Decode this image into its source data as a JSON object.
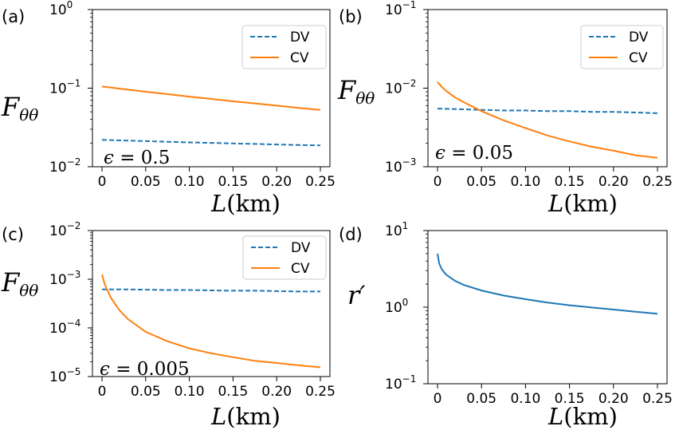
{
  "chart_data": [
    {
      "panel": "(a)",
      "type": "line",
      "ylabel": "Fθθ",
      "xlabel": "L(km)",
      "annotation": "ϵ = 0.5",
      "yscale": "log",
      "ylim": [
        0.01,
        1
      ],
      "xlim": [
        0,
        0.25
      ],
      "xticks": [
        "0",
        "0.05",
        "0.10",
        "0.15",
        "0.20",
        "0.25"
      ],
      "yticks": [
        {
          "base": "10",
          "exp": "0"
        },
        {
          "base": "10",
          "exp": "−1"
        },
        {
          "base": "10",
          "exp": "−2"
        }
      ],
      "legend_position": "upper right",
      "series": [
        {
          "name": "DV",
          "style": "dashed",
          "color": "#1f77b4",
          "x": [
            0,
            0.025,
            0.05,
            0.075,
            0.1,
            0.125,
            0.15,
            0.175,
            0.2,
            0.225,
            0.25
          ],
          "y": [
            0.022,
            0.0216,
            0.0212,
            0.0208,
            0.0204,
            0.0201,
            0.0198,
            0.0195,
            0.0192,
            0.0189,
            0.0187
          ]
        },
        {
          "name": "CV",
          "style": "solid",
          "color": "#ff7f0e",
          "x": [
            0,
            0.025,
            0.05,
            0.075,
            0.1,
            0.125,
            0.15,
            0.175,
            0.2,
            0.225,
            0.25
          ],
          "y": [
            0.105,
            0.097,
            0.09,
            0.084,
            0.078,
            0.073,
            0.068,
            0.064,
            0.06,
            0.056,
            0.053
          ]
        }
      ]
    },
    {
      "panel": "(b)",
      "type": "line",
      "ylabel": "Fθθ",
      "xlabel": "L(km)",
      "annotation": "ϵ = 0.05",
      "yscale": "log",
      "ylim": [
        0.001,
        0.1
      ],
      "xlim": [
        0,
        0.25
      ],
      "xticks": [
        "0",
        "0.05",
        "0.10",
        "0.15",
        "0.20",
        "0.25"
      ],
      "yticks": [
        {
          "base": "10",
          "exp": "−1"
        },
        {
          "base": "10",
          "exp": "−2"
        },
        {
          "base": "10",
          "exp": "−3"
        }
      ],
      "legend_position": "upper right",
      "series": [
        {
          "name": "DV",
          "style": "dashed",
          "color": "#1f77b4",
          "x": [
            0,
            0.025,
            0.05,
            0.075,
            0.1,
            0.125,
            0.15,
            0.175,
            0.2,
            0.225,
            0.25
          ],
          "y": [
            0.0055,
            0.0054,
            0.0053,
            0.0052,
            0.0052,
            0.0051,
            0.0051,
            0.005,
            0.005,
            0.0049,
            0.0048
          ]
        },
        {
          "name": "CV",
          "style": "solid",
          "color": "#ff7f0e",
          "x": [
            0,
            0.005,
            0.01,
            0.02,
            0.03,
            0.05,
            0.075,
            0.1,
            0.125,
            0.15,
            0.175,
            0.2,
            0.225,
            0.25
          ],
          "y": [
            0.012,
            0.0103,
            0.0092,
            0.0076,
            0.0066,
            0.0051,
            0.0039,
            0.0031,
            0.0025,
            0.0021,
            0.0018,
            0.0016,
            0.0014,
            0.0013
          ]
        }
      ]
    },
    {
      "panel": "(c)",
      "type": "line",
      "ylabel": "Fθθ",
      "xlabel": "L(km)",
      "annotation": "ϵ = 0.005",
      "yscale": "log",
      "ylim": [
        1e-05,
        0.01
      ],
      "xlim": [
        0,
        0.25
      ],
      "xticks": [
        "0",
        "0.05",
        "0.10",
        "0.15",
        "0.20",
        "0.25"
      ],
      "yticks": [
        {
          "base": "10",
          "exp": "−2"
        },
        {
          "base": "10",
          "exp": "−3"
        },
        {
          "base": "10",
          "exp": "−4"
        },
        {
          "base": "10",
          "exp": "−5"
        }
      ],
      "legend_position": "upper right",
      "series": [
        {
          "name": "DV",
          "style": "dashed",
          "color": "#1f77b4",
          "x": [
            0,
            0.025,
            0.05,
            0.075,
            0.1,
            0.125,
            0.15,
            0.175,
            0.2,
            0.225,
            0.25
          ],
          "y": [
            0.00062,
            0.00062,
            0.00061,
            0.0006,
            0.0006,
            0.00059,
            0.00058,
            0.00058,
            0.00057,
            0.00056,
            0.00056
          ]
        },
        {
          "name": "CV",
          "style": "solid",
          "color": "#ff7f0e",
          "x": [
            0,
            0.003,
            0.006,
            0.01,
            0.02,
            0.03,
            0.05,
            0.075,
            0.1,
            0.125,
            0.15,
            0.175,
            0.2,
            0.225,
            0.25
          ],
          "y": [
            0.00125,
            0.0008,
            0.0006,
            0.00042,
            0.00023,
            0.00015,
            8.3e-05,
            5.3e-05,
            3.8e-05,
            3e-05,
            2.5e-05,
            2.1e-05,
            1.9e-05,
            1.7e-05,
            1.55e-05
          ]
        }
      ]
    },
    {
      "panel": "(d)",
      "type": "line",
      "ylabel": "r′",
      "xlabel": "L(km)",
      "yscale": "log",
      "ylim": [
        0.1,
        10
      ],
      "xlim": [
        0,
        0.25
      ],
      "xticks": [
        "0",
        "0.05",
        "0.10",
        "0.15",
        "0.20",
        "0.25"
      ],
      "yticks": [
        {
          "base": "10",
          "exp": "1"
        },
        {
          "base": "10",
          "exp": "0"
        },
        {
          "base": "10",
          "exp": "−1"
        }
      ],
      "series": [
        {
          "color": "#1f77b4",
          "style": "solid",
          "x": [
            0,
            0.002,
            0.005,
            0.01,
            0.02,
            0.03,
            0.05,
            0.075,
            0.1,
            0.125,
            0.15,
            0.175,
            0.2,
            0.225,
            0.25
          ],
          "y": [
            5.0,
            3.7,
            3.1,
            2.65,
            2.2,
            1.95,
            1.65,
            1.42,
            1.27,
            1.15,
            1.06,
            0.99,
            0.93,
            0.87,
            0.82
          ]
        }
      ]
    }
  ]
}
